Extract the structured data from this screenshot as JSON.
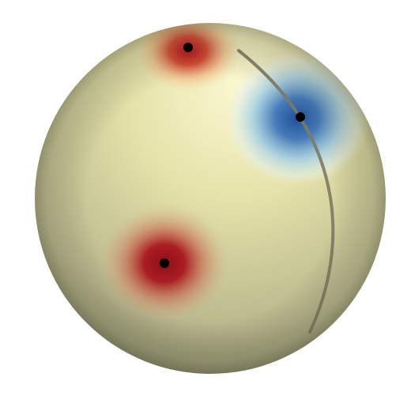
{
  "scene": {
    "object": "sphere",
    "base_color": "#e6e2aa",
    "highlight_color": "#fbf7d0",
    "shadow_color": "#7b7a5c",
    "hot_color": "#a8141c",
    "warm_color": "#d2452f",
    "cold_color": "#2a5ea6",
    "cool_color": "#bfe3ef",
    "marker_color": "#000000",
    "seam_color": "#7d7b60"
  },
  "markers": [
    {
      "name": "marker-top-red",
      "type": "red-peak"
    },
    {
      "name": "marker-right-blue",
      "type": "blue-trough"
    },
    {
      "name": "marker-left-red",
      "type": "red-peak"
    }
  ]
}
